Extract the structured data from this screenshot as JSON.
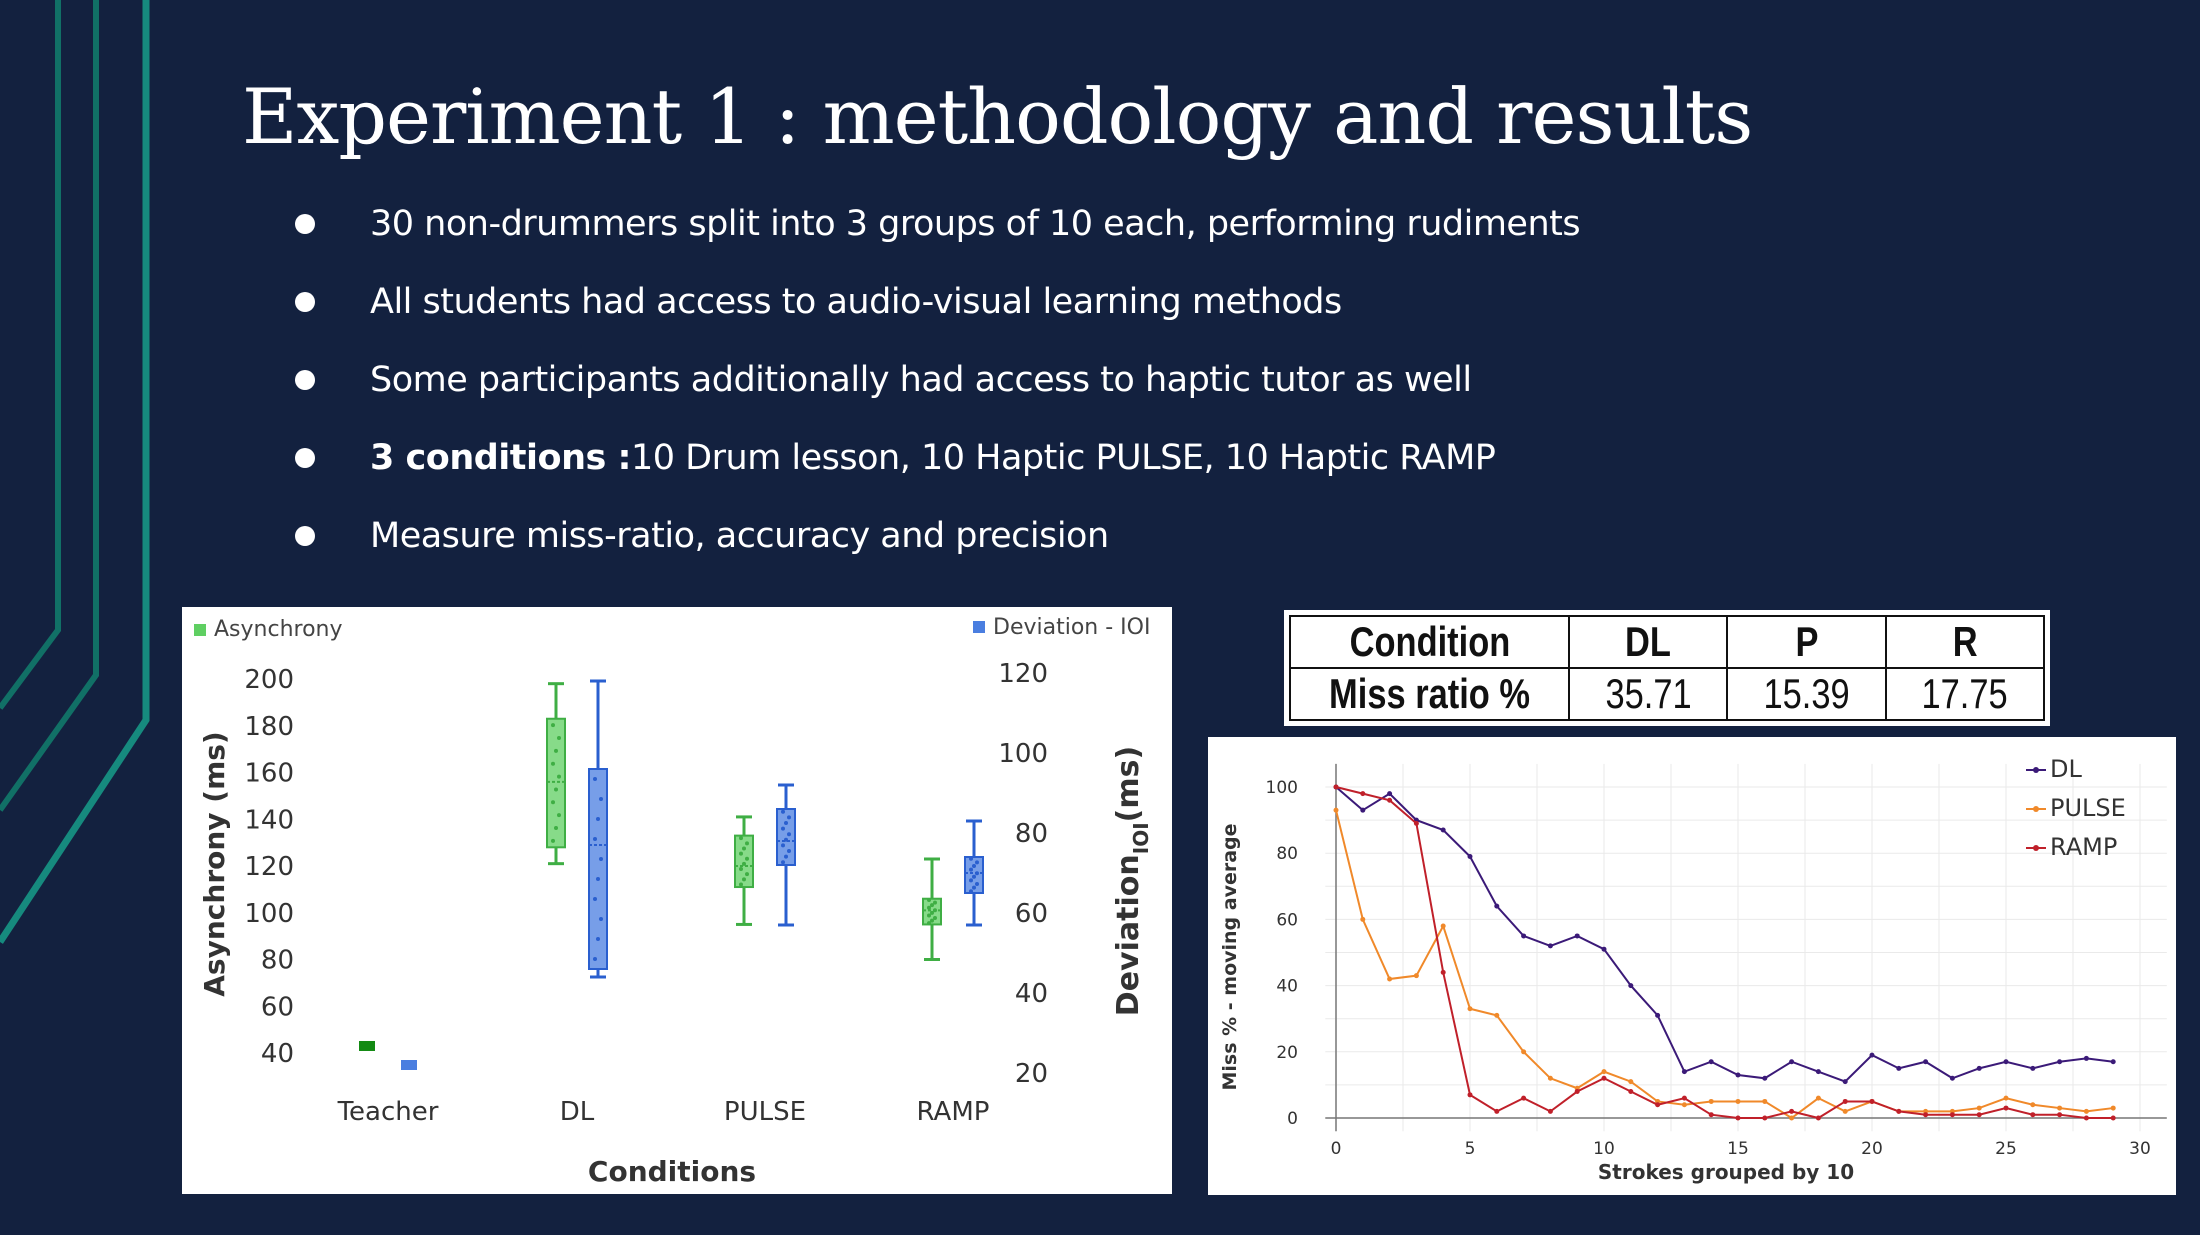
{
  "slide": {
    "title": "Experiment 1 : methodology and results",
    "bullets": [
      {
        "bold": "",
        "text": "30 non-drummers split into 3 groups of 10 each, performing rudiments"
      },
      {
        "bold": "",
        "text": "All students had access to audio-visual learning methods"
      },
      {
        "bold": "",
        "text": "Some participants additionally had access to haptic tutor as well"
      },
      {
        "bold": "3 conditions :",
        "text": " 10 Drum lesson, 10 Haptic PULSE, 10 Haptic RAMP"
      },
      {
        "bold": "",
        "text": "Measure miss-ratio, accuracy and precision"
      }
    ],
    "colors": {
      "background": "#13213f",
      "accent_teal": "#127a72",
      "text": "#ffffff"
    }
  },
  "table": {
    "headers": [
      "Condition",
      "DL",
      "P",
      "R"
    ],
    "rows": [
      [
        "Miss ratio %",
        "35.71",
        "15.39",
        "17.75"
      ]
    ]
  },
  "chart_data": [
    {
      "type": "box",
      "xlabel": "Conditions",
      "ylabel": "Asynchrony (ms)",
      "y2label_main": "Deviation",
      "y2label_sub": "IOI",
      "y2label_unit": "(ms)",
      "ylim": [
        40,
        200
      ],
      "yticks": [
        40,
        60,
        80,
        100,
        120,
        140,
        160,
        180,
        200
      ],
      "y2lim": [
        20,
        120
      ],
      "y2ticks": [
        20,
        40,
        60,
        80,
        100,
        120
      ],
      "categories": [
        "Teacher",
        "DL",
        "PULSE",
        "RAMP"
      ],
      "legend": [
        {
          "name": "Asynchrony",
          "color": "#5fcf62",
          "placement": "top-left"
        },
        {
          "name": "Deviation - IOI",
          "color": "#4a7ee0",
          "placement": "top-right"
        }
      ],
      "series": [
        {
          "name": "Asynchrony",
          "axis": "left",
          "color": "#5fcf62",
          "edge": "#3fae44",
          "teacher_color": "#138a13",
          "boxes": [
            {
              "category": "Teacher",
              "value": 43
            },
            {
              "category": "DL",
              "min": 121,
              "q1": 128,
              "median": 156,
              "q3": 183,
              "max": 198
            },
            {
              "category": "PULSE",
              "min": 95,
              "q1": 111,
              "median": 120,
              "q3": 133,
              "max": 141
            },
            {
              "category": "RAMP",
              "min": 80,
              "q1": 95,
              "median": 101,
              "q3": 106,
              "max": 123
            }
          ]
        },
        {
          "name": "Deviation - IOI",
          "axis": "right",
          "color": "#4a7ee0",
          "edge": "#2a5fcf",
          "boxes": [
            {
              "category": "Teacher",
              "value": 22
            },
            {
              "category": "DL",
              "min": 44,
              "q1": 46,
              "median": 77,
              "q3": 96,
              "max": 118
            },
            {
              "category": "PULSE",
              "min": 57,
              "q1": 72,
              "median": 78,
              "q3": 86,
              "max": 92
            },
            {
              "category": "RAMP",
              "min": 57,
              "q1": 65,
              "median": 70,
              "q3": 74,
              "max": 83
            }
          ]
        }
      ]
    },
    {
      "type": "line",
      "xlabel": "Strokes grouped by 10",
      "ylabel": "Miss % - moving average",
      "xlim": [
        0,
        30
      ],
      "ylim": [
        0,
        100
      ],
      "xticks": [
        0,
        5,
        10,
        15,
        20,
        25,
        30
      ],
      "yticks": [
        0,
        20,
        40,
        60,
        80,
        100
      ],
      "legend_placement": "top-right",
      "x": [
        0,
        1,
        2,
        3,
        4,
        5,
        6,
        7,
        8,
        9,
        10,
        11,
        12,
        13,
        14,
        15,
        16,
        17,
        18,
        19,
        20,
        21,
        22,
        23,
        24,
        25,
        26,
        27,
        28,
        29
      ],
      "series": [
        {
          "name": "DL",
          "color": "#3b1a78",
          "values": [
            100,
            93,
            98,
            90,
            87,
            79,
            64,
            55,
            52,
            55,
            51,
            40,
            31,
            14,
            17,
            13,
            12,
            17,
            14,
            11,
            19,
            15,
            17,
            12,
            15,
            17,
            15,
            17,
            18,
            17
          ]
        },
        {
          "name": "PULSE",
          "color": "#f0892a",
          "values": [
            93,
            60,
            42,
            43,
            58,
            33,
            31,
            20,
            12,
            9,
            14,
            11,
            5,
            4,
            5,
            5,
            5,
            0,
            6,
            2,
            5,
            2,
            2,
            2,
            3,
            6,
            4,
            3,
            2,
            3
          ]
        },
        {
          "name": "RAMP",
          "color": "#c0202a",
          "values": [
            100,
            98,
            96,
            89,
            44,
            7,
            2,
            6,
            2,
            8,
            12,
            8,
            4,
            6,
            1,
            0,
            0,
            2,
            0,
            5,
            5,
            2,
            1,
            1,
            1,
            3,
            1,
            1,
            0,
            0
          ]
        }
      ]
    }
  ]
}
